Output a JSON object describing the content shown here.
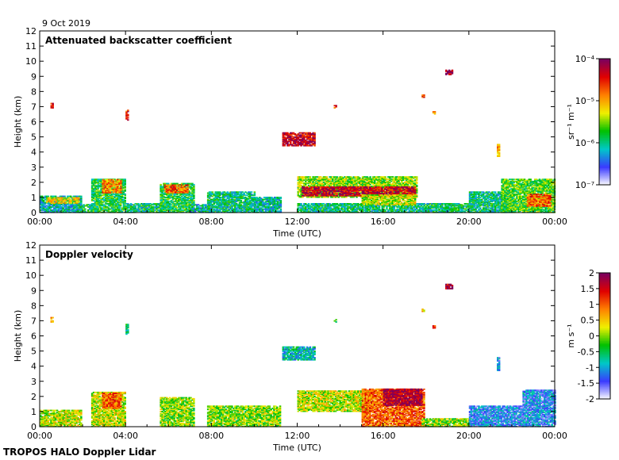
{
  "figure": {
    "date_label": "9 Oct 2019",
    "footer": "TROPOS HALO Doppler Lidar"
  },
  "chart_data": [
    {
      "type": "heatmap",
      "title": "Attenuated backscatter coefficient",
      "xlabel": "Time (UTC)",
      "ylabel": "Height (km)",
      "x_ticks": [
        "00:00",
        "04:00",
        "08:00",
        "12:00",
        "16:00",
        "20:00",
        "00:00"
      ],
      "y_ticks": [
        "0",
        "1",
        "2",
        "3",
        "4",
        "5",
        "6",
        "7",
        "8",
        "9",
        "10",
        "11",
        "12"
      ],
      "ylim": [
        0,
        12
      ],
      "colorbar": {
        "scale": "log",
        "ticks": [
          "10⁻⁷",
          "10⁻⁶",
          "10⁻⁵",
          "10⁻⁴"
        ],
        "label": "sr⁻¹ m⁻¹",
        "colormap": [
          "#ffffff",
          "#3a3aff",
          "#00c8c8",
          "#00c000",
          "#f0f000",
          "#ff8000",
          "#e00000",
          "#7a0060"
        ]
      },
      "regions": [
        {
          "t0": 0.0,
          "t1": 1.9,
          "h0": 0.0,
          "h1": 1.1,
          "level": 0.3
        },
        {
          "t0": 0.3,
          "t1": 1.8,
          "h0": 0.6,
          "h1": 1.0,
          "level": 0.6
        },
        {
          "t0": 1.8,
          "t1": 2.7,
          "h0": 0.0,
          "h1": 0.5,
          "level": 0.35
        },
        {
          "t0": 2.4,
          "t1": 4.0,
          "h0": 0.0,
          "h1": 2.2,
          "level": 0.4
        },
        {
          "t0": 2.9,
          "t1": 3.8,
          "h0": 1.3,
          "h1": 2.2,
          "level": 0.7
        },
        {
          "t0": 4.0,
          "t1": 5.8,
          "h0": 0.0,
          "h1": 0.6,
          "level": 0.35
        },
        {
          "t0": 5.6,
          "t1": 7.2,
          "h0": 0.0,
          "h1": 1.9,
          "level": 0.4
        },
        {
          "t0": 5.8,
          "t1": 6.9,
          "h0": 1.3,
          "h1": 1.8,
          "level": 0.75
        },
        {
          "t0": 7.0,
          "t1": 8.0,
          "h0": 0.0,
          "h1": 0.5,
          "level": 0.3
        },
        {
          "t0": 7.8,
          "t1": 10.0,
          "h0": 0.0,
          "h1": 1.4,
          "level": 0.35
        },
        {
          "t0": 10.0,
          "t1": 11.2,
          "h0": 0.0,
          "h1": 1.0,
          "level": 0.3
        },
        {
          "t0": 11.3,
          "t1": 12.8,
          "h0": 4.4,
          "h1": 5.3,
          "level": 0.9
        },
        {
          "t0": 12.0,
          "t1": 17.6,
          "h0": 1.0,
          "h1": 2.4,
          "level": 0.5
        },
        {
          "t0": 12.2,
          "t1": 17.5,
          "h0": 1.1,
          "h1": 1.7,
          "level": 0.9
        },
        {
          "t0": 12.0,
          "t1": 20.0,
          "h0": 0.0,
          "h1": 0.6,
          "level": 0.35
        },
        {
          "t0": 15.0,
          "t1": 17.5,
          "h0": 0.5,
          "h1": 1.2,
          "level": 0.55
        },
        {
          "t0": 20.0,
          "t1": 22.0,
          "h0": 0.0,
          "h1": 1.4,
          "level": 0.35
        },
        {
          "t0": 21.5,
          "t1": 24.0,
          "h0": 0.0,
          "h1": 2.2,
          "level": 0.45
        },
        {
          "t0": 22.7,
          "t1": 23.8,
          "h0": 0.4,
          "h1": 1.2,
          "level": 0.75
        },
        {
          "t0": 0.5,
          "t1": 0.6,
          "h0": 6.9,
          "h1": 7.2,
          "level": 0.85
        },
        {
          "t0": 4.0,
          "t1": 4.1,
          "h0": 6.1,
          "h1": 6.8,
          "level": 0.85
        },
        {
          "t0": 13.7,
          "t1": 13.8,
          "h0": 6.9,
          "h1": 7.1,
          "level": 0.8
        },
        {
          "t0": 17.8,
          "t1": 17.9,
          "h0": 7.6,
          "h1": 7.8,
          "level": 0.8
        },
        {
          "t0": 18.3,
          "t1": 18.4,
          "h0": 6.5,
          "h1": 6.7,
          "level": 0.7
        },
        {
          "t0": 18.9,
          "t1": 19.2,
          "h0": 9.1,
          "h1": 9.4,
          "level": 0.95
        },
        {
          "t0": 21.3,
          "t1": 21.4,
          "h0": 3.7,
          "h1": 4.5,
          "level": 0.65
        }
      ]
    },
    {
      "type": "heatmap",
      "title": "Doppler velocity",
      "xlabel": "Time (UTC)",
      "ylabel": "Height (km)",
      "x_ticks": [
        "00:00",
        "04:00",
        "08:00",
        "12:00",
        "16:00",
        "20:00",
        "00:00"
      ],
      "y_ticks": [
        "0",
        "1",
        "2",
        "3",
        "4",
        "5",
        "6",
        "7",
        "8",
        "9",
        "10",
        "11",
        "12"
      ],
      "ylim": [
        0,
        12
      ],
      "colorbar": {
        "scale": "linear",
        "range": [
          -2,
          2
        ],
        "ticks": [
          "-2",
          "-1.5",
          "-1",
          "-0.5",
          "0",
          "0.5",
          "1",
          "1.5",
          "2"
        ],
        "label": "m s⁻¹",
        "colormap": [
          "#ffffff",
          "#3a3aff",
          "#00c8c8",
          "#00c000",
          "#f0f000",
          "#ff8000",
          "#e00000",
          "#7a0060"
        ]
      },
      "regions": [
        {
          "t0": 0.0,
          "t1": 1.9,
          "h0": 0.0,
          "h1": 1.1,
          "level": 0.55
        },
        {
          "t0": 2.4,
          "t1": 4.0,
          "h0": 0.0,
          "h1": 2.3,
          "level": 0.55
        },
        {
          "t0": 2.9,
          "t1": 3.8,
          "h0": 1.2,
          "h1": 2.2,
          "level": 0.75
        },
        {
          "t0": 5.6,
          "t1": 7.2,
          "h0": 0.0,
          "h1": 1.9,
          "level": 0.5
        },
        {
          "t0": 7.8,
          "t1": 11.2,
          "h0": 0.0,
          "h1": 1.4,
          "level": 0.5
        },
        {
          "t0": 11.3,
          "t1": 12.8,
          "h0": 4.4,
          "h1": 5.3,
          "level": 0.3
        },
        {
          "t0": 12.0,
          "t1": 15.5,
          "h0": 1.0,
          "h1": 2.4,
          "level": 0.55
        },
        {
          "t0": 15.0,
          "t1": 17.9,
          "h0": 0.0,
          "h1": 2.5,
          "level": 0.75
        },
        {
          "t0": 16.0,
          "t1": 17.8,
          "h0": 1.4,
          "h1": 2.5,
          "level": 0.95
        },
        {
          "t0": 17.8,
          "t1": 20.0,
          "h0": 0.0,
          "h1": 0.5,
          "level": 0.5
        },
        {
          "t0": 20.0,
          "t1": 22.5,
          "h0": 0.0,
          "h1": 1.4,
          "level": 0.2
        },
        {
          "t0": 22.5,
          "t1": 24.0,
          "h0": 0.0,
          "h1": 2.4,
          "level": 0.2
        },
        {
          "t0": 0.5,
          "t1": 0.6,
          "h0": 6.9,
          "h1": 7.2,
          "level": 0.65
        },
        {
          "t0": 4.0,
          "t1": 4.1,
          "h0": 6.1,
          "h1": 6.8,
          "level": 0.35
        },
        {
          "t0": 13.7,
          "t1": 13.8,
          "h0": 6.9,
          "h1": 7.1,
          "level": 0.45
        },
        {
          "t0": 17.8,
          "t1": 17.9,
          "h0": 7.6,
          "h1": 7.8,
          "level": 0.65
        },
        {
          "t0": 18.3,
          "t1": 18.4,
          "h0": 6.5,
          "h1": 6.7,
          "level": 0.8
        },
        {
          "t0": 18.9,
          "t1": 19.2,
          "h0": 9.1,
          "h1": 9.4,
          "level": 0.92
        },
        {
          "t0": 21.3,
          "t1": 21.4,
          "h0": 3.7,
          "h1": 4.6,
          "level": 0.22
        }
      ]
    }
  ]
}
